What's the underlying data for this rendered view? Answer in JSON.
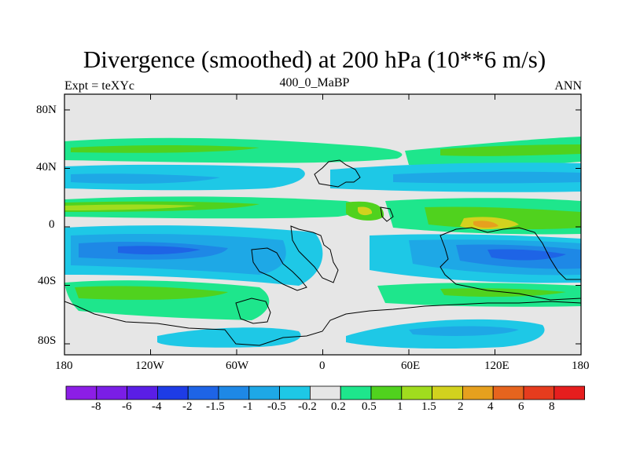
{
  "title": "Divergence (smoothed) at 200 hPa (10**6 m/s)",
  "subtitle_left": "Expt = teXYc",
  "subtitle_center": "400_0_MaBP",
  "subtitle_right": "ANN",
  "map": {
    "background_color": "#e6e6e6",
    "x_ticks": [
      "180",
      "120W",
      "60W",
      "0",
      "60E",
      "120E",
      "180"
    ],
    "y_ticks": [
      "80N",
      "40N",
      "0",
      "40S",
      "80S"
    ]
  },
  "colorbar": {
    "colors": [
      "#8c1ee6",
      "#7a1ee6",
      "#5a1ee6",
      "#1e3ce6",
      "#1e64e6",
      "#1e88e6",
      "#1ea8e6",
      "#1ec8e6",
      "#e6e6e6",
      "#1ee68c",
      "#50d21e",
      "#a0dc1e",
      "#d2d21e",
      "#e6a01e",
      "#e6641e",
      "#e63c1e",
      "#e61e1e"
    ],
    "labels": [
      "-8",
      "-6",
      "-4",
      "-2",
      "-1.5",
      "-1",
      "-0.5",
      "-0.2",
      "0.2",
      "0.5",
      "1",
      "1.5",
      "2",
      "4",
      "6",
      "8"
    ]
  }
}
